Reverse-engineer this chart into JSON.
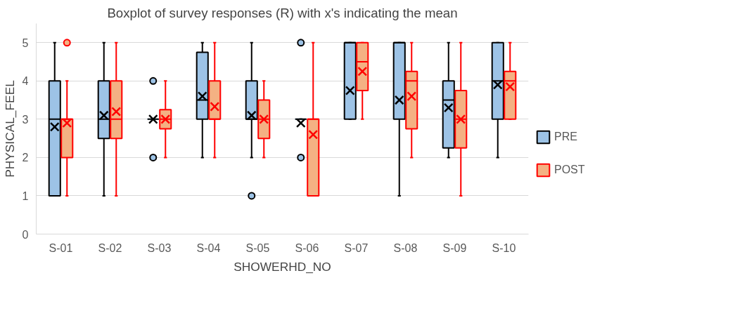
{
  "chart_data": {
    "type": "box",
    "title": "Boxplot of survey responses (R) with x's indicating the mean",
    "xlabel": "SHOWERHD_NO",
    "ylabel": "PHYSICAL_FEEL",
    "categories": [
      "S-01",
      "S-02",
      "S-03",
      "S-04",
      "S-05",
      "S-06",
      "S-07",
      "S-08",
      "S-09",
      "S-10"
    ],
    "ylim": [
      0,
      5.5
    ],
    "yticks": [
      0,
      1,
      2,
      3,
      4,
      5
    ],
    "grid": "y",
    "legend": "right",
    "series": [
      {
        "name": "PRE",
        "color": "#9dc3e6",
        "boxes": [
          {
            "low": 1,
            "q1": 1,
            "median": 3,
            "q3": 4,
            "high": 5,
            "mean": 2.8
          },
          {
            "low": 1,
            "q1": 2.5,
            "median": 3,
            "q3": 4,
            "high": 5,
            "mean": 3.1
          },
          {
            "low": 3,
            "q1": 3,
            "median": 3,
            "q3": 3,
            "high": 3,
            "mean": 3,
            "outliers": [
              4,
              2
            ]
          },
          {
            "low": 2,
            "q1": 3,
            "median": 3.5,
            "q3": 4.75,
            "high": 5,
            "mean": 3.6
          },
          {
            "low": 2,
            "q1": 3,
            "median": 3,
            "q3": 4,
            "high": 5,
            "mean": 3.1,
            "outliers": [
              1
            ]
          },
          {
            "low": 3,
            "q1": 3,
            "median": 3,
            "q3": 3,
            "high": 3,
            "mean": 2.9,
            "outliers": [
              5,
              2
            ]
          },
          {
            "low": 3,
            "q1": 3,
            "median": 5,
            "q3": 5,
            "high": 5,
            "mean": 3.75
          },
          {
            "low": 1,
            "q1": 3,
            "median": 5,
            "q3": 5,
            "high": 5,
            "mean": 3.5
          },
          {
            "low": 2,
            "q1": 2.25,
            "median": 3.5,
            "q3": 4,
            "high": 5,
            "mean": 3.3
          },
          {
            "low": 2,
            "q1": 3,
            "median": 4,
            "q3": 5,
            "high": 5,
            "mean": 3.9
          }
        ]
      },
      {
        "name": "POST",
        "color": "#f4b183",
        "boxes": [
          {
            "low": 1,
            "q1": 2,
            "median": 3,
            "q3": 3,
            "high": 4,
            "mean": 2.9,
            "outliers": [
              5
            ]
          },
          {
            "low": 1,
            "q1": 2.5,
            "median": 3,
            "q3": 4,
            "high": 5,
            "mean": 3.2
          },
          {
            "low": 2,
            "q1": 2.75,
            "median": 3,
            "q3": 3.25,
            "high": 4,
            "mean": 3
          },
          {
            "low": 2,
            "q1": 3,
            "median": 3,
            "q3": 4,
            "high": 5,
            "mean": 3.33
          },
          {
            "low": 2,
            "q1": 2.5,
            "median": 3,
            "q3": 3.5,
            "high": 4,
            "mean": 3
          },
          {
            "low": 1,
            "q1": 1,
            "median": 3,
            "q3": 3,
            "high": 5,
            "mean": 2.6
          },
          {
            "low": 3,
            "q1": 3.75,
            "median": 4.5,
            "q3": 5,
            "high": 5,
            "mean": 4.25
          },
          {
            "low": 2,
            "q1": 2.75,
            "median": 4,
            "q3": 4.25,
            "high": 5,
            "mean": 3.6
          },
          {
            "low": 1,
            "q1": 2.25,
            "median": 3,
            "q3": 3.75,
            "high": 5,
            "mean": 3
          },
          {
            "low": 3,
            "q1": 3,
            "median": 4,
            "q3": 4.25,
            "high": 5,
            "mean": 3.85
          }
        ]
      }
    ]
  }
}
